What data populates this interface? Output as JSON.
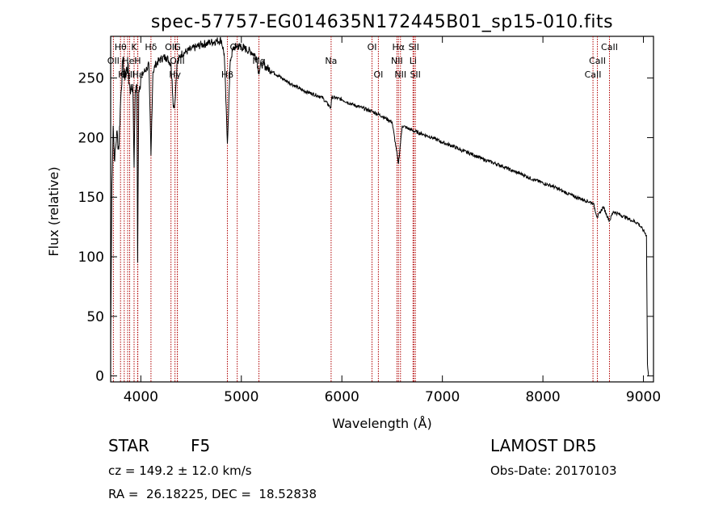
{
  "chart_data": {
    "type": "line",
    "title": "spec-57757-EG014635N172445B01_sp15-010.fits",
    "xlabel": "Wavelength (Å)",
    "ylabel": "Flux (relative)",
    "xlim": [
      3700,
      9100
    ],
    "ylim": [
      -5,
      285
    ],
    "xticks": [
      4000,
      5000,
      6000,
      7000,
      8000,
      9000
    ],
    "yticks": [
      0,
      50,
      100,
      150,
      200,
      250
    ],
    "grid": false,
    "line_color": "#000000",
    "marker_color": "#b00000",
    "spectrum_anchor_points": [
      [
        3700,
        30
      ],
      [
        3712,
        160
      ],
      [
        3725,
        210
      ],
      [
        3740,
        180
      ],
      [
        3760,
        205
      ],
      [
        3780,
        190
      ],
      [
        3800,
        232
      ],
      [
        3820,
        265
      ],
      [
        3835,
        250
      ],
      [
        3850,
        255
      ],
      [
        3870,
        260
      ],
      [
        3885,
        245
      ],
      [
        3900,
        240
      ],
      [
        3920,
        245
      ],
      [
        3933,
        175
      ],
      [
        3945,
        240
      ],
      [
        3960,
        245
      ],
      [
        3968,
        95
      ],
      [
        3980,
        240
      ],
      [
        4000,
        250
      ],
      [
        4030,
        255
      ],
      [
        4060,
        258
      ],
      [
        4080,
        262
      ],
      [
        4101,
        185
      ],
      [
        4120,
        255
      ],
      [
        4150,
        262
      ],
      [
        4200,
        266
      ],
      [
        4250,
        268
      ],
      [
        4300,
        262
      ],
      [
        4326,
        225
      ],
      [
        4340,
        230
      ],
      [
        4360,
        262
      ],
      [
        4400,
        270
      ],
      [
        4450,
        272
      ],
      [
        4500,
        274
      ],
      [
        4550,
        276
      ],
      [
        4600,
        278
      ],
      [
        4650,
        279
      ],
      [
        4700,
        280
      ],
      [
        4750,
        281
      ],
      [
        4800,
        282
      ],
      [
        4830,
        270
      ],
      [
        4861,
        195
      ],
      [
        4890,
        265
      ],
      [
        4920,
        275
      ],
      [
        4960,
        277
      ],
      [
        5000,
        276
      ],
      [
        5050,
        274
      ],
      [
        5100,
        272
      ],
      [
        5150,
        268
      ],
      [
        5172,
        255
      ],
      [
        5200,
        262
      ],
      [
        5300,
        256
      ],
      [
        5400,
        250
      ],
      [
        5500,
        245
      ],
      [
        5600,
        240
      ],
      [
        5700,
        237
      ],
      [
        5800,
        234
      ],
      [
        5890,
        225
      ],
      [
        5900,
        234
      ],
      [
        6000,
        232
      ],
      [
        6100,
        228
      ],
      [
        6200,
        225
      ],
      [
        6300,
        222
      ],
      [
        6400,
        218
      ],
      [
        6500,
        213
      ],
      [
        6563,
        178
      ],
      [
        6600,
        210
      ],
      [
        6700,
        206
      ],
      [
        6800,
        203
      ],
      [
        6900,
        200
      ],
      [
        7000,
        196
      ],
      [
        7100,
        193
      ],
      [
        7200,
        189
      ],
      [
        7300,
        186
      ],
      [
        7400,
        182
      ],
      [
        7500,
        179
      ],
      [
        7600,
        176
      ],
      [
        7700,
        172
      ],
      [
        7800,
        169
      ],
      [
        7900,
        165
      ],
      [
        8000,
        162
      ],
      [
        8100,
        159
      ],
      [
        8200,
        155
      ],
      [
        8300,
        151
      ],
      [
        8400,
        148
      ],
      [
        8500,
        145
      ],
      [
        8542,
        133
      ],
      [
        8600,
        142
      ],
      [
        8662,
        130
      ],
      [
        8700,
        138
      ],
      [
        8800,
        134
      ],
      [
        8900,
        130
      ],
      [
        8950,
        128
      ],
      [
        9000,
        122
      ],
      [
        9030,
        118
      ],
      [
        9040,
        10
      ],
      [
        9050,
        0
      ]
    ],
    "absorption_lines": [
      {
        "label": "Hθ",
        "wavelength": 3798,
        "row": 1
      },
      {
        "label": "K",
        "wavelength": 3933,
        "row": 1
      },
      {
        "label": "Hδ",
        "wavelength": 4101,
        "row": 1
      },
      {
        "label": "OII",
        "wavelength": 4300,
        "row": 1
      },
      {
        "label": "G",
        "wavelength": 4364,
        "row": 1
      },
      {
        "label": "OIII",
        "wavelength": 4959,
        "row": 1
      },
      {
        "label": "OI",
        "wavelength": 6300,
        "row": 1
      },
      {
        "label": "Hα",
        "wavelength": 6563,
        "row": 1
      },
      {
        "label": "SII",
        "wavelength": 6716,
        "row": 1
      },
      {
        "label": "CaII",
        "wavelength": 8662,
        "row": 1
      },
      {
        "label": "OII",
        "wavelength": 3727,
        "row": 2
      },
      {
        "label": "HeI",
        "wavelength": 3889,
        "row": 2
      },
      {
        "label": "H",
        "wavelength": 3968,
        "row": 2
      },
      {
        "label": "OIII",
        "wavelength": 4363,
        "row": 2
      },
      {
        "label": "Mg",
        "wavelength": 5175,
        "row": 2
      },
      {
        "label": "Na",
        "wavelength": 5893,
        "row": 2
      },
      {
        "label": "NII",
        "wavelength": 6548,
        "row": 2
      },
      {
        "label": "Li",
        "wavelength": 6708,
        "row": 2
      },
      {
        "label": "CaII",
        "wavelength": 8542,
        "row": 2
      },
      {
        "label": "OIII",
        "wavelength": 3869,
        "row": 3
      },
      {
        "label": "Hη",
        "wavelength": 3835,
        "row": 3
      },
      {
        "label": "Hε",
        "wavelength": 3970,
        "row": 3
      },
      {
        "label": "Hγ",
        "wavelength": 4340,
        "row": 3
      },
      {
        "label": "Hβ",
        "wavelength": 4861,
        "row": 3
      },
      {
        "label": "OI",
        "wavelength": 6363,
        "row": 3
      },
      {
        "label": "NII",
        "wavelength": 6583,
        "row": 3
      },
      {
        "label": "SII",
        "wavelength": 6731,
        "row": 3
      },
      {
        "label": "CaII",
        "wavelength": 8498,
        "row": 3
      }
    ]
  },
  "footer": {
    "class_label": "STAR",
    "subclass": "F5",
    "redshift": "cz = 149.2 ± 12.0 km/s",
    "coords": "RA =  26.18225, DEC =  18.52838",
    "survey": "LAMOST DR5",
    "obs_date": "Obs-Date: 20170103"
  }
}
